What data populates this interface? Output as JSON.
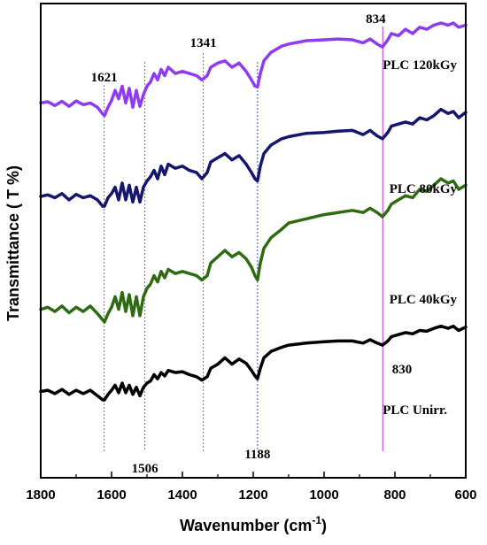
{
  "chart_data": {
    "type": "line",
    "xlabel": "Wavenumber (cm",
    "xlabel_superscript": "-1",
    "xlabel_close": ")",
    "ylabel": "Transmittance ( T %)",
    "xlim": [
      1800,
      600
    ],
    "x_reversed": true,
    "ylim": [
      0,
      100
    ],
    "x_ticks": [
      "1800",
      "1600",
      "1400",
      "1200",
      "1000",
      "800",
      "600"
    ],
    "y_ticks_shown": false,
    "grid": false,
    "series": [
      {
        "name": "PLC 120kGy",
        "color": "#8e3cf0",
        "points": [
          [
            1800,
            81
          ],
          [
            1780,
            81.3
          ],
          [
            1760,
            80.4
          ],
          [
            1740,
            81.4
          ],
          [
            1720,
            80.2
          ],
          [
            1700,
            81.5
          ],
          [
            1680,
            80.6
          ],
          [
            1660,
            81
          ],
          [
            1640,
            80
          ],
          [
            1625,
            78.4
          ],
          [
            1620,
            78
          ],
          [
            1610,
            80
          ],
          [
            1600,
            81.6
          ],
          [
            1590,
            84
          ],
          [
            1580,
            82
          ],
          [
            1570,
            85
          ],
          [
            1560,
            81
          ],
          [
            1550,
            84.5
          ],
          [
            1540,
            80
          ],
          [
            1530,
            84
          ],
          [
            1520,
            80.2
          ],
          [
            1510,
            83
          ],
          [
            1500,
            85
          ],
          [
            1490,
            86
          ],
          [
            1480,
            88
          ],
          [
            1470,
            86.5
          ],
          [
            1460,
            89
          ],
          [
            1450,
            87.5
          ],
          [
            1440,
            89.5
          ],
          [
            1420,
            88
          ],
          [
            1400,
            88.5
          ],
          [
            1380,
            88
          ],
          [
            1360,
            87.5
          ],
          [
            1345,
            86.5
          ],
          [
            1330,
            87.5
          ],
          [
            1320,
            89.5
          ],
          [
            1300,
            90.5
          ],
          [
            1280,
            91
          ],
          [
            1260,
            89.5
          ],
          [
            1240,
            90.5
          ],
          [
            1220,
            88.5
          ],
          [
            1205,
            86.5
          ],
          [
            1195,
            85
          ],
          [
            1188,
            84.8
          ],
          [
            1180,
            88
          ],
          [
            1170,
            91
          ],
          [
            1150,
            93
          ],
          [
            1120,
            94.5
          ],
          [
            1100,
            95
          ],
          [
            1050,
            95.8
          ],
          [
            1000,
            96
          ],
          [
            960,
            96.2
          ],
          [
            920,
            96
          ],
          [
            890,
            95.3
          ],
          [
            870,
            96.2
          ],
          [
            850,
            95
          ],
          [
            835,
            94.3
          ],
          [
            820,
            96
          ],
          [
            810,
            97.5
          ],
          [
            790,
            97
          ],
          [
            770,
            98.5
          ],
          [
            750,
            97.5
          ],
          [
            730,
            99
          ],
          [
            710,
            98.5
          ],
          [
            690,
            99.5
          ],
          [
            670,
            100
          ],
          [
            650,
            99.5
          ],
          [
            635,
            100
          ],
          [
            620,
            99
          ],
          [
            600,
            99.5
          ]
        ]
      },
      {
        "name": "PLC 80kGy",
        "color": "#16166e",
        "points": [
          [
            1800,
            58.8
          ],
          [
            1780,
            59.2
          ],
          [
            1760,
            58.5
          ],
          [
            1740,
            59.5
          ],
          [
            1720,
            58
          ],
          [
            1700,
            59.3
          ],
          [
            1680,
            58.5
          ],
          [
            1660,
            59
          ],
          [
            1640,
            58
          ],
          [
            1625,
            56.5
          ],
          [
            1620,
            56.5
          ],
          [
            1610,
            58.5
          ],
          [
            1600,
            59.5
          ],
          [
            1590,
            61
          ],
          [
            1580,
            58
          ],
          [
            1570,
            62
          ],
          [
            1560,
            58
          ],
          [
            1550,
            61.5
          ],
          [
            1540,
            57.5
          ],
          [
            1530,
            61
          ],
          [
            1520,
            57.5
          ],
          [
            1510,
            61
          ],
          [
            1500,
            62.5
          ],
          [
            1490,
            63.5
          ],
          [
            1480,
            65
          ],
          [
            1470,
            63
          ],
          [
            1460,
            66
          ],
          [
            1450,
            64
          ],
          [
            1440,
            66.5
          ],
          [
            1420,
            65.5
          ],
          [
            1400,
            66
          ],
          [
            1380,
            65
          ],
          [
            1360,
            64.5
          ],
          [
            1345,
            63
          ],
          [
            1330,
            64.5
          ],
          [
            1320,
            67
          ],
          [
            1300,
            68
          ],
          [
            1280,
            69
          ],
          [
            1260,
            67.5
          ],
          [
            1240,
            68.5
          ],
          [
            1220,
            66.5
          ],
          [
            1205,
            64.5
          ],
          [
            1195,
            63
          ],
          [
            1188,
            62.5
          ],
          [
            1180,
            66
          ],
          [
            1170,
            69
          ],
          [
            1150,
            71
          ],
          [
            1120,
            72.5
          ],
          [
            1100,
            73
          ],
          [
            1050,
            73.8
          ],
          [
            1000,
            74
          ],
          [
            960,
            74.3
          ],
          [
            920,
            74.5
          ],
          [
            890,
            73.5
          ],
          [
            870,
            74.5
          ],
          [
            850,
            73.2
          ],
          [
            835,
            72.5
          ],
          [
            820,
            74
          ],
          [
            810,
            75.5
          ],
          [
            790,
            76
          ],
          [
            770,
            76.5
          ],
          [
            750,
            76
          ],
          [
            730,
            77.5
          ],
          [
            710,
            77
          ],
          [
            690,
            78
          ],
          [
            670,
            79.5
          ],
          [
            650,
            78.5
          ],
          [
            635,
            79
          ],
          [
            620,
            77.5
          ],
          [
            600,
            78.8
          ]
        ]
      },
      {
        "name": "PLC 40kGy",
        "color": "#2e6b12",
        "points": [
          [
            1800,
            32
          ],
          [
            1780,
            32.5
          ],
          [
            1760,
            31.5
          ],
          [
            1740,
            32.8
          ],
          [
            1720,
            31.2
          ],
          [
            1700,
            32.5
          ],
          [
            1680,
            31.5
          ],
          [
            1660,
            32.8
          ],
          [
            1640,
            31
          ],
          [
            1625,
            29.5
          ],
          [
            1620,
            29
          ],
          [
            1610,
            31
          ],
          [
            1600,
            32.5
          ],
          [
            1590,
            35
          ],
          [
            1580,
            32
          ],
          [
            1570,
            36
          ],
          [
            1560,
            31.5
          ],
          [
            1550,
            35.5
          ],
          [
            1540,
            30.5
          ],
          [
            1530,
            35
          ],
          [
            1520,
            30.5
          ],
          [
            1510,
            35
          ],
          [
            1500,
            37
          ],
          [
            1490,
            38
          ],
          [
            1480,
            40
          ],
          [
            1470,
            38.5
          ],
          [
            1460,
            41
          ],
          [
            1450,
            39.5
          ],
          [
            1440,
            41.5
          ],
          [
            1420,
            40.5
          ],
          [
            1400,
            41
          ],
          [
            1380,
            40.5
          ],
          [
            1360,
            40
          ],
          [
            1345,
            39
          ],
          [
            1330,
            40
          ],
          [
            1320,
            43
          ],
          [
            1300,
            44.5
          ],
          [
            1280,
            46
          ],
          [
            1260,
            44.5
          ],
          [
            1240,
            45.5
          ],
          [
            1220,
            44
          ],
          [
            1205,
            42
          ],
          [
            1195,
            40
          ],
          [
            1188,
            39
          ],
          [
            1180,
            43
          ],
          [
            1170,
            46.5
          ],
          [
            1150,
            49
          ],
          [
            1120,
            51
          ],
          [
            1100,
            52.5
          ],
          [
            1050,
            53.5
          ],
          [
            1000,
            54.5
          ],
          [
            960,
            55
          ],
          [
            920,
            55.5
          ],
          [
            890,
            55
          ],
          [
            870,
            56
          ],
          [
            850,
            55
          ],
          [
            835,
            54
          ],
          [
            820,
            55.5
          ],
          [
            810,
            57
          ],
          [
            790,
            58
          ],
          [
            770,
            59
          ],
          [
            750,
            58.5
          ],
          [
            730,
            60.5
          ],
          [
            710,
            60
          ],
          [
            690,
            61.5
          ],
          [
            670,
            63
          ],
          [
            650,
            62
          ],
          [
            635,
            62.5
          ],
          [
            620,
            60.5
          ],
          [
            600,
            61.5
          ]
        ]
      },
      {
        "name": "PLC Unirr.",
        "color": "#000000",
        "points": [
          [
            1800,
            12.5
          ],
          [
            1780,
            12.8
          ],
          [
            1760,
            12
          ],
          [
            1740,
            13
          ],
          [
            1720,
            11.8
          ],
          [
            1700,
            12.8
          ],
          [
            1680,
            12
          ],
          [
            1660,
            12.8
          ],
          [
            1640,
            11.5
          ],
          [
            1625,
            10.5
          ],
          [
            1620,
            10.5
          ],
          [
            1610,
            11.8
          ],
          [
            1600,
            12.8
          ],
          [
            1590,
            14
          ],
          [
            1580,
            12.2
          ],
          [
            1570,
            14.5
          ],
          [
            1560,
            12.2
          ],
          [
            1550,
            14
          ],
          [
            1540,
            11.8
          ],
          [
            1530,
            13.5
          ],
          [
            1520,
            11.5
          ],
          [
            1510,
            13.5
          ],
          [
            1500,
            14.5
          ],
          [
            1490,
            15
          ],
          [
            1480,
            16.5
          ],
          [
            1470,
            15.5
          ],
          [
            1460,
            17
          ],
          [
            1450,
            16.2
          ],
          [
            1440,
            17.5
          ],
          [
            1420,
            17
          ],
          [
            1400,
            17.2
          ],
          [
            1380,
            16.5
          ],
          [
            1360,
            16
          ],
          [
            1345,
            15.2
          ],
          [
            1330,
            16
          ],
          [
            1320,
            18
          ],
          [
            1300,
            19
          ],
          [
            1280,
            20.5
          ],
          [
            1260,
            19
          ],
          [
            1240,
            20.2
          ],
          [
            1220,
            19.2
          ],
          [
            1205,
            17.5
          ],
          [
            1195,
            16.2
          ],
          [
            1188,
            15.5
          ],
          [
            1180,
            18
          ],
          [
            1170,
            20.5
          ],
          [
            1150,
            22
          ],
          [
            1120,
            23
          ],
          [
            1100,
            23.5
          ],
          [
            1050,
            24
          ],
          [
            1000,
            24.3
          ],
          [
            960,
            24.5
          ],
          [
            920,
            24.5
          ],
          [
            890,
            24
          ],
          [
            870,
            24.8
          ],
          [
            850,
            24
          ],
          [
            835,
            23.5
          ],
          [
            820,
            24.5
          ],
          [
            810,
            25.5
          ],
          [
            790,
            26
          ],
          [
            770,
            26.5
          ],
          [
            750,
            26.2
          ],
          [
            730,
            27
          ],
          [
            710,
            26.8
          ],
          [
            690,
            27.5
          ],
          [
            670,
            28
          ],
          [
            650,
            27.5
          ],
          [
            635,
            28
          ],
          [
            620,
            27
          ],
          [
            600,
            27.8
          ]
        ]
      }
    ],
    "annotations": [
      {
        "text": "1621",
        "x": 1621,
        "label_pos": "top"
      },
      {
        "text": "1506",
        "x": 1506,
        "label_pos": "bottom"
      },
      {
        "text": "1341",
        "x": 1341,
        "label_pos": "top"
      },
      {
        "text": "1188",
        "x": 1188,
        "label_pos": "bottom"
      },
      {
        "text": "834",
        "x": 834,
        "label_pos": "top"
      },
      {
        "text": "830",
        "x": 830,
        "label_pos": "bottom"
      }
    ],
    "vlines": [
      {
        "x": 1621,
        "color": "#d0534f",
        "style": "dotted"
      },
      {
        "x": 1506,
        "color": "#d0534f",
        "style": "dotted"
      },
      {
        "x": 1341,
        "color": "#d0534f",
        "style": "dotted"
      },
      {
        "x": 1188,
        "color": "#3a4fc7",
        "style": "dotted"
      },
      {
        "x": 834,
        "color": "#d070e0",
        "style": "solid"
      }
    ]
  }
}
